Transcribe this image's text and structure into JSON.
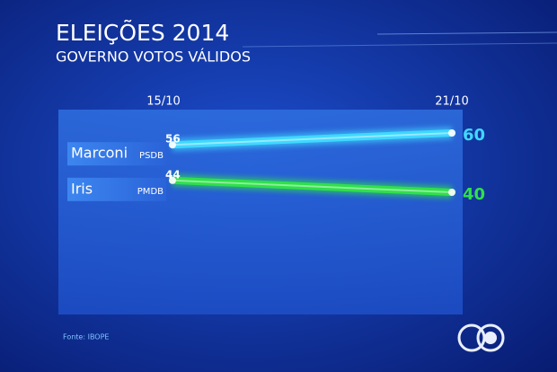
{
  "chart_data": {
    "type": "line",
    "title": "ELEIÇÕES 2014",
    "subtitle": "GOVERNO VOTOS VÁLIDOS",
    "categories": [
      "15/10",
      "21/10"
    ],
    "series": [
      {
        "name": "Marconi",
        "party": "PSDB",
        "color": "#3fd8ff",
        "values": [
          56,
          60
        ]
      },
      {
        "name": "Iris",
        "party": "PMDB",
        "color": "#2fe04a",
        "values": [
          44,
          40
        ]
      }
    ],
    "source": "Fonte: IBOPE"
  }
}
